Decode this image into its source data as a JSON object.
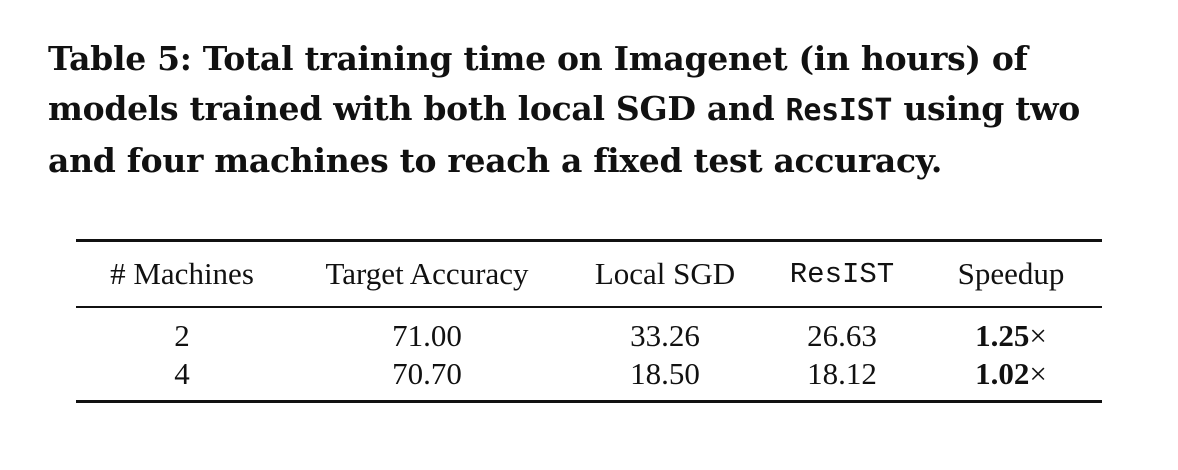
{
  "caption": {
    "prefix": "Table 5: Total training time on Imagenet (in hours) of models trained with both local SGD and ",
    "method": "ResIST",
    "suffix": " using two and four machines to reach a fixed test accuracy."
  },
  "table": {
    "headers": [
      "# Machines",
      "Target Accuracy",
      "Local SGD",
      "ResIST",
      "Speedup"
    ],
    "rows": [
      {
        "machines": "2",
        "target_accuracy": "71.00",
        "local_sgd": "33.26",
        "resist": "26.63",
        "speedup": "1.25",
        "speedup_unit": "×"
      },
      {
        "machines": "4",
        "target_accuracy": "70.70",
        "local_sgd": "18.50",
        "resist": "18.12",
        "speedup": "1.02",
        "speedup_unit": "×"
      }
    ]
  }
}
